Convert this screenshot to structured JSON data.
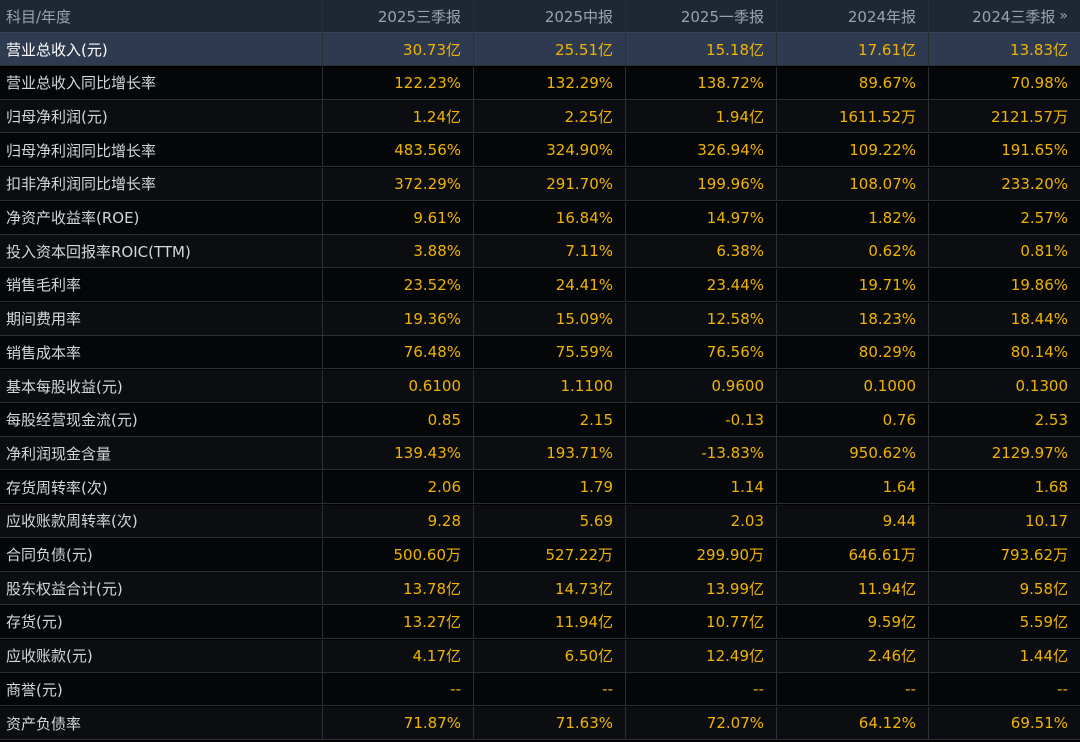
{
  "columns": [
    "科目/年度",
    "2025三季报",
    "2025中报",
    "2025一季报",
    "2024年报",
    "2024三季报"
  ],
  "nav_icon": "double-chevron-right-icon",
  "rows": [
    {
      "label": "营业总收入(元)",
      "values": [
        "30.73亿",
        "25.51亿",
        "15.18亿",
        "17.61亿",
        "13.83亿"
      ]
    },
    {
      "label": "营业总收入同比增长率",
      "values": [
        "122.23%",
        "132.29%",
        "138.72%",
        "89.67%",
        "70.98%"
      ]
    },
    {
      "label": "归母净利润(元)",
      "values": [
        "1.24亿",
        "2.25亿",
        "1.94亿",
        "1611.52万",
        "2121.57万"
      ]
    },
    {
      "label": "归母净利润同比增长率",
      "values": [
        "483.56%",
        "324.90%",
        "326.94%",
        "109.22%",
        "191.65%"
      ]
    },
    {
      "label": "扣非净利润同比增长率",
      "values": [
        "372.29%",
        "291.70%",
        "199.96%",
        "108.07%",
        "233.20%"
      ]
    },
    {
      "label": "净资产收益率(ROE)",
      "values": [
        "9.61%",
        "16.84%",
        "14.97%",
        "1.82%",
        "2.57%"
      ]
    },
    {
      "label": "投入资本回报率ROIC(TTM)",
      "values": [
        "3.88%",
        "7.11%",
        "6.38%",
        "0.62%",
        "0.81%"
      ]
    },
    {
      "label": "销售毛利率",
      "values": [
        "23.52%",
        "24.41%",
        "23.44%",
        "19.71%",
        "19.86%"
      ]
    },
    {
      "label": "期间费用率",
      "values": [
        "19.36%",
        "15.09%",
        "12.58%",
        "18.23%",
        "18.44%"
      ]
    },
    {
      "label": "销售成本率",
      "values": [
        "76.48%",
        "75.59%",
        "76.56%",
        "80.29%",
        "80.14%"
      ]
    },
    {
      "label": "基本每股收益(元)",
      "values": [
        "0.6100",
        "1.1100",
        "0.9600",
        "0.1000",
        "0.1300"
      ]
    },
    {
      "label": "每股经营现金流(元)",
      "values": [
        "0.85",
        "2.15",
        "-0.13",
        "0.76",
        "2.53"
      ]
    },
    {
      "label": "净利润现金含量",
      "values": [
        "139.43%",
        "193.71%",
        "-13.83%",
        "950.62%",
        "2129.97%"
      ]
    },
    {
      "label": "存货周转率(次)",
      "values": [
        "2.06",
        "1.79",
        "1.14",
        "1.64",
        "1.68"
      ]
    },
    {
      "label": "应收账款周转率(次)",
      "values": [
        "9.28",
        "5.69",
        "2.03",
        "9.44",
        "10.17"
      ]
    },
    {
      "label": "合同负债(元)",
      "values": [
        "500.60万",
        "527.22万",
        "299.90万",
        "646.61万",
        "793.62万"
      ]
    },
    {
      "label": "股东权益合计(元)",
      "values": [
        "13.78亿",
        "14.73亿",
        "13.99亿",
        "11.94亿",
        "9.58亿"
      ]
    },
    {
      "label": "存货(元)",
      "values": [
        "13.27亿",
        "11.94亿",
        "10.77亿",
        "9.59亿",
        "5.59亿"
      ]
    },
    {
      "label": "应收账款(元)",
      "values": [
        "4.17亿",
        "6.50亿",
        "12.49亿",
        "2.46亿",
        "1.44亿"
      ]
    },
    {
      "label": "商誉(元)",
      "values": [
        "--",
        "--",
        "--",
        "--",
        "--"
      ]
    },
    {
      "label": "资产负债率",
      "values": [
        "71.87%",
        "71.63%",
        "72.07%",
        "64.12%",
        "69.51%"
      ]
    }
  ]
}
